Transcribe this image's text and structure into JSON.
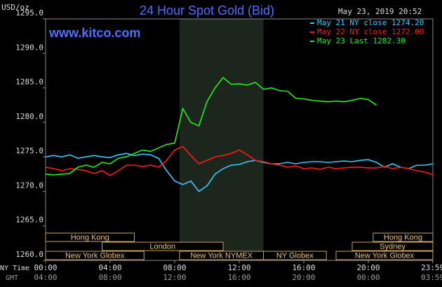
{
  "chart_data": {
    "type": "line",
    "title": "24 Hour Spot Gold (Bid)",
    "website": "www.kitco.com",
    "timestamp": "May 23, 2019 20:52",
    "y_label": "USD/oz",
    "x_label": "NY Time",
    "x2_label": "GMT",
    "x": [
      0,
      0.5,
      1,
      1.5,
      2,
      2.5,
      3,
      3.5,
      4,
      4.5,
      5,
      5.5,
      6,
      6.5,
      7,
      7.5,
      8,
      8.5,
      9,
      9.5,
      10,
      10.5,
      11,
      11.5,
      12,
      12.5,
      13,
      13.5,
      14,
      14.5,
      15,
      15.5,
      16,
      16.5,
      17,
      17.5,
      18,
      18.5,
      19,
      19.5,
      20,
      20.5,
      21,
      21.5,
      22,
      22.5,
      23,
      23.5,
      24
    ],
    "xlim": [
      0,
      24
    ],
    "xticks": [
      {
        "value": 0,
        "label": "00:00"
      },
      {
        "value": 4,
        "label": "04:00"
      },
      {
        "value": 8,
        "label": "08:00"
      },
      {
        "value": 12,
        "label": "12:00"
      },
      {
        "value": 16,
        "label": "16:00"
      },
      {
        "value": 20,
        "label": "20:00"
      },
      {
        "value": 23.98,
        "label": "23:59"
      }
    ],
    "x2ticks": [
      {
        "value": 0,
        "label": "04:00"
      },
      {
        "value": 4,
        "label": "08:00"
      },
      {
        "value": 8,
        "label": "12:00"
      },
      {
        "value": 12,
        "label": "16:00"
      },
      {
        "value": 16,
        "label": "20:00"
      },
      {
        "value": 20,
        "label": "00:00"
      },
      {
        "value": 23.98,
        "label": "03:59"
      }
    ],
    "ylim": [
      1260,
      1295
    ],
    "yticks": [
      {
        "value": 1260,
        "label": "1260.0"
      },
      {
        "value": 1265,
        "label": "1265.0"
      },
      {
        "value": 1270,
        "label": "1270.0"
      },
      {
        "value": 1275,
        "label": "1275.0"
      },
      {
        "value": 1280,
        "label": "1280.0"
      },
      {
        "value": 1285,
        "label": "1285.0"
      },
      {
        "value": 1290,
        "label": "1290.0"
      },
      {
        "value": 1295,
        "label": "1295.0"
      }
    ],
    "grid": false,
    "series": [
      {
        "name": "May 21 NY close 1274.20",
        "color": "#33ccff",
        "values": [
          1275,
          1275.2,
          1275,
          1275.3,
          1274.8,
          1275,
          1275.2,
          1275,
          1274.9,
          1275.3,
          1275.5,
          1275.2,
          1275.4,
          1275.3,
          1274.8,
          1273,
          1271.5,
          1271,
          1271.5,
          1270,
          1270.8,
          1272.5,
          1273.3,
          1273.8,
          1273.9,
          1274.3,
          1274.5,
          1274.2,
          1274,
          1274,
          1274.2,
          1274,
          1274.2,
          1274.3,
          1274.3,
          1274.2,
          1274.3,
          1274.4,
          1274.3,
          1274.5,
          1274.6,
          1274.2,
          1273.5,
          1274,
          1273.5,
          1273.3,
          1273.8,
          1273.8,
          1274
        ]
      },
      {
        "name": "May 22 NY close 1272.00",
        "color": "#ff1a1a",
        "values": [
          1273.5,
          1273.3,
          1273,
          1273.3,
          1273.2,
          1273,
          1272.6,
          1273,
          1272.3,
          1273,
          1273.8,
          1273.8,
          1273.6,
          1273.8,
          1273.5,
          1274.5,
          1276,
          1276.5,
          1275.2,
          1274,
          1274.5,
          1275,
          1275.2,
          1275.5,
          1276,
          1275.3,
          1274.5,
          1274.3,
          1274,
          1273.8,
          1273.5,
          1273.7,
          1273.3,
          1273.4,
          1273.2,
          1273.5,
          1273.3,
          1273.4,
          1273.5,
          1273.5,
          1273.4,
          1273.4,
          1273.6,
          1273.3,
          1273.5,
          1273.3,
          1273,
          1272.8,
          1272.4
        ]
      },
      {
        "name": "May 23 Last 1282.30",
        "color": "#22ee22",
        "values": [
          1272.5,
          1272.4,
          1272.5,
          1272.6,
          1273.5,
          1273.8,
          1273.5,
          1274.2,
          1274,
          1274.8,
          1275,
          1275.5,
          1276,
          1275.8,
          1276.3,
          1276.8,
          1277,
          1282,
          1280,
          1279.5,
          1283,
          1285,
          1286.5,
          1285.5,
          1285.6,
          1285.4,
          1285.8,
          1284.8,
          1285,
          1284.6,
          1284.5,
          1283.5,
          1283.4,
          1283.2,
          1283.1,
          1283,
          1283.1,
          1283,
          1283.2,
          1283.5,
          1283.3,
          1282.5,
          null,
          null,
          null,
          null,
          null,
          null,
          null
        ]
      }
    ],
    "sessions": [
      {
        "label": "Hong Kong",
        "start": 0,
        "end": 5.5
      },
      {
        "label": "Hong Kong",
        "start": 20.3,
        "end": 24
      },
      {
        "label": "London",
        "start": 3.5,
        "end": 11
      },
      {
        "label": "Sydney",
        "start": 19,
        "end": 24
      },
      {
        "label": "New York Globex",
        "start": 0,
        "end": 6.1
      },
      {
        "label": "New York NYMEX",
        "start": 8.3,
        "end": 13.5
      },
      {
        "label": "NY Globex",
        "start": 13.5,
        "end": 17.4
      },
      {
        "label": "New York Globex",
        "start": 18,
        "end": 24
      }
    ]
  }
}
